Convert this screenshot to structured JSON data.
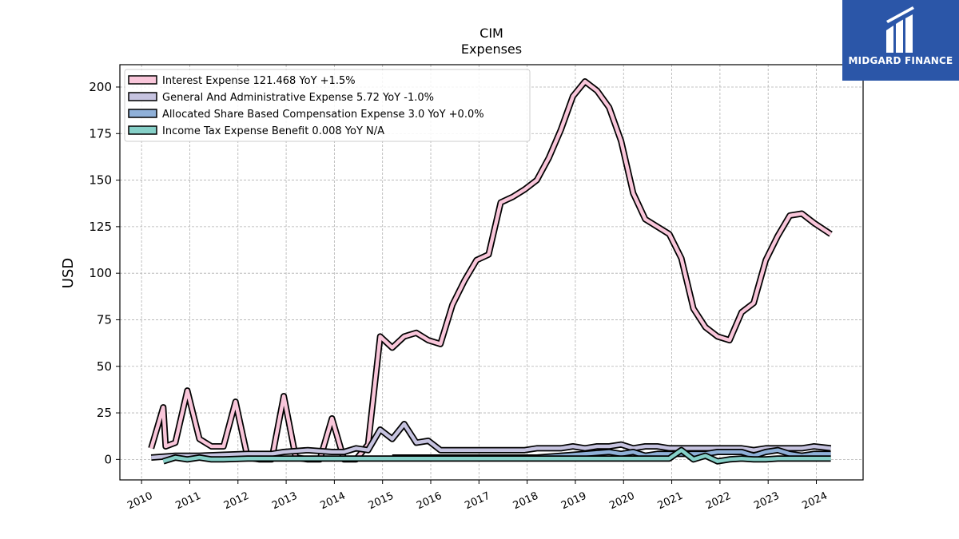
{
  "chart_data": {
    "type": "line",
    "title": "CIM",
    "subtitle": "Expenses",
    "xlabel": "",
    "ylabel": "USD",
    "xlim": [
      2009.55,
      2024.97
    ],
    "ylim": [
      -11,
      212
    ],
    "x_ticks": [
      "2010",
      "2011",
      "2012",
      "2013",
      "2014",
      "2015",
      "2016",
      "2017",
      "2018",
      "2019",
      "2020",
      "2021",
      "2022",
      "2023",
      "2024"
    ],
    "y_ticks": [
      "0",
      "25",
      "50",
      "75",
      "100",
      "125",
      "150",
      "175",
      "200"
    ],
    "grid": true,
    "legend_position": "top-left",
    "series": [
      {
        "name": "Interest Expense",
        "legend_label": "Interest Expense  121.468 YoY +1.5%",
        "color": "#f9c6da",
        "points": [
          [
            2010.2,
            6
          ],
          [
            2010.45,
            28
          ],
          [
            2010.5,
            7
          ],
          [
            2010.7,
            9
          ],
          [
            2010.95,
            37
          ],
          [
            2011.2,
            11
          ],
          [
            2011.45,
            7
          ],
          [
            2011.7,
            7
          ],
          [
            2011.95,
            31
          ],
          [
            2012.2,
            1
          ],
          [
            2012.45,
            0
          ],
          [
            2012.7,
            0
          ],
          [
            2012.95,
            34
          ],
          [
            2013.2,
            1
          ],
          [
            2013.45,
            0
          ],
          [
            2013.7,
            0
          ],
          [
            2013.95,
            22
          ],
          [
            2014.2,
            0
          ],
          [
            2014.45,
            0
          ],
          [
            2014.7,
            8
          ],
          [
            2014.95,
            66
          ],
          [
            2015.2,
            60
          ],
          [
            2015.45,
            66
          ],
          [
            2015.7,
            68
          ],
          [
            2015.95,
            64
          ],
          [
            2016.2,
            62
          ],
          [
            2016.45,
            83
          ],
          [
            2016.7,
            96
          ],
          [
            2016.95,
            107
          ],
          [
            2017.2,
            110
          ],
          [
            2017.45,
            138
          ],
          [
            2017.7,
            141
          ],
          [
            2017.95,
            145
          ],
          [
            2018.2,
            150
          ],
          [
            2018.45,
            162
          ],
          [
            2018.7,
            177
          ],
          [
            2018.95,
            195
          ],
          [
            2019.2,
            203
          ],
          [
            2019.45,
            198
          ],
          [
            2019.7,
            189
          ],
          [
            2019.95,
            171
          ],
          [
            2020.2,
            143
          ],
          [
            2020.45,
            129
          ],
          [
            2020.7,
            125
          ],
          [
            2020.95,
            121
          ],
          [
            2021.2,
            108
          ],
          [
            2021.45,
            81
          ],
          [
            2021.7,
            71
          ],
          [
            2021.95,
            66
          ],
          [
            2022.2,
            64
          ],
          [
            2022.45,
            79
          ],
          [
            2022.7,
            84
          ],
          [
            2022.95,
            107
          ],
          [
            2023.2,
            120
          ],
          [
            2023.45,
            131
          ],
          [
            2023.7,
            132
          ],
          [
            2023.95,
            127
          ],
          [
            2024.3,
            121
          ]
        ]
      },
      {
        "name": "General And Administrative Expense",
        "legend_label": "General And Administrative Expense  5.72 YoY -1.0%",
        "color": "#c6c3e0",
        "points": [
          [
            2010.2,
            1
          ],
          [
            2010.7,
            2
          ],
          [
            2011.2,
            2
          ],
          [
            2011.7,
            2.5
          ],
          [
            2012.2,
            3
          ],
          [
            2012.7,
            3
          ],
          [
            2012.95,
            4
          ],
          [
            2013.45,
            5
          ],
          [
            2013.95,
            4
          ],
          [
            2014.2,
            4
          ],
          [
            2014.45,
            6
          ],
          [
            2014.7,
            5
          ],
          [
            2014.95,
            16
          ],
          [
            2015.2,
            11
          ],
          [
            2015.45,
            19
          ],
          [
            2015.7,
            9
          ],
          [
            2015.95,
            10
          ],
          [
            2016.2,
            5
          ],
          [
            2016.7,
            5
          ],
          [
            2017.2,
            5
          ],
          [
            2017.45,
            5
          ],
          [
            2017.95,
            5
          ],
          [
            2018.2,
            6
          ],
          [
            2018.45,
            6
          ],
          [
            2018.7,
            6
          ],
          [
            2018.95,
            7
          ],
          [
            2019.2,
            6
          ],
          [
            2019.45,
            7
          ],
          [
            2019.7,
            7
          ],
          [
            2019.95,
            8
          ],
          [
            2020.2,
            6
          ],
          [
            2020.45,
            7
          ],
          [
            2020.7,
            7
          ],
          [
            2020.95,
            6
          ],
          [
            2021.2,
            6
          ],
          [
            2021.45,
            6
          ],
          [
            2021.7,
            6
          ],
          [
            2021.95,
            6
          ],
          [
            2022.2,
            6
          ],
          [
            2022.45,
            6
          ],
          [
            2022.7,
            5
          ],
          [
            2022.95,
            6
          ],
          [
            2023.2,
            6
          ],
          [
            2023.45,
            6
          ],
          [
            2023.7,
            6
          ],
          [
            2023.95,
            7
          ],
          [
            2024.3,
            6
          ]
        ]
      },
      {
        "name": "Allocated Share Based Compensation Expense",
        "legend_label": "Allocated Share Based Compensation Expense  3.0 YoY +0.0%",
        "color": "#8fb0d8",
        "points": [
          [
            2015.2,
            1
          ],
          [
            2015.7,
            1
          ],
          [
            2016.2,
            1
          ],
          [
            2016.7,
            1
          ],
          [
            2017.2,
            1
          ],
          [
            2017.7,
            1
          ],
          [
            2018.2,
            1
          ],
          [
            2018.7,
            2
          ],
          [
            2019.2,
            3
          ],
          [
            2019.7,
            4
          ],
          [
            2019.95,
            3
          ],
          [
            2020.2,
            4
          ],
          [
            2020.45,
            2
          ],
          [
            2020.7,
            3
          ],
          [
            2021.2,
            3
          ],
          [
            2021.45,
            3
          ],
          [
            2021.7,
            3
          ],
          [
            2021.95,
            4
          ],
          [
            2022.2,
            4
          ],
          [
            2022.45,
            4
          ],
          [
            2022.7,
            2
          ],
          [
            2022.95,
            4
          ],
          [
            2023.2,
            5
          ],
          [
            2023.45,
            3
          ],
          [
            2023.7,
            2
          ],
          [
            2023.95,
            3
          ],
          [
            2024.3,
            3
          ]
        ]
      },
      {
        "name": "Income Tax Expense Benefit",
        "legend_label": "Income Tax Expense Benefit  0.008 YoY N/A",
        "color": "#86d0c8",
        "points": [
          [
            2010.45,
            -1
          ],
          [
            2010.7,
            1
          ],
          [
            2010.95,
            0
          ],
          [
            2011.2,
            1
          ],
          [
            2011.45,
            0
          ],
          [
            2011.7,
            0
          ],
          [
            2012.2,
            0.5
          ],
          [
            2012.7,
            0.5
          ],
          [
            2013.2,
            0.5
          ],
          [
            2013.7,
            0.5
          ],
          [
            2014.2,
            0.5
          ],
          [
            2014.7,
            0.5
          ],
          [
            2015.2,
            0.5
          ],
          [
            2015.7,
            0.5
          ],
          [
            2016.2,
            0.5
          ],
          [
            2016.7,
            0.5
          ],
          [
            2017.2,
            0.5
          ],
          [
            2017.7,
            0.5
          ],
          [
            2018.2,
            0.5
          ],
          [
            2018.7,
            0.5
          ],
          [
            2019.2,
            0.5
          ],
          [
            2019.7,
            0.5
          ],
          [
            2020.2,
            0.5
          ],
          [
            2020.7,
            0.5
          ],
          [
            2020.95,
            0.5
          ],
          [
            2021.2,
            5
          ],
          [
            2021.45,
            0
          ],
          [
            2021.7,
            2
          ],
          [
            2021.95,
            -1
          ],
          [
            2022.2,
            0
          ],
          [
            2022.45,
            0.5
          ],
          [
            2022.7,
            0
          ],
          [
            2022.95,
            0
          ],
          [
            2023.2,
            0.5
          ],
          [
            2023.7,
            0.5
          ],
          [
            2024.3,
            0.5
          ]
        ]
      }
    ]
  },
  "logo": {
    "text": "MIDGARD FINANCE"
  }
}
